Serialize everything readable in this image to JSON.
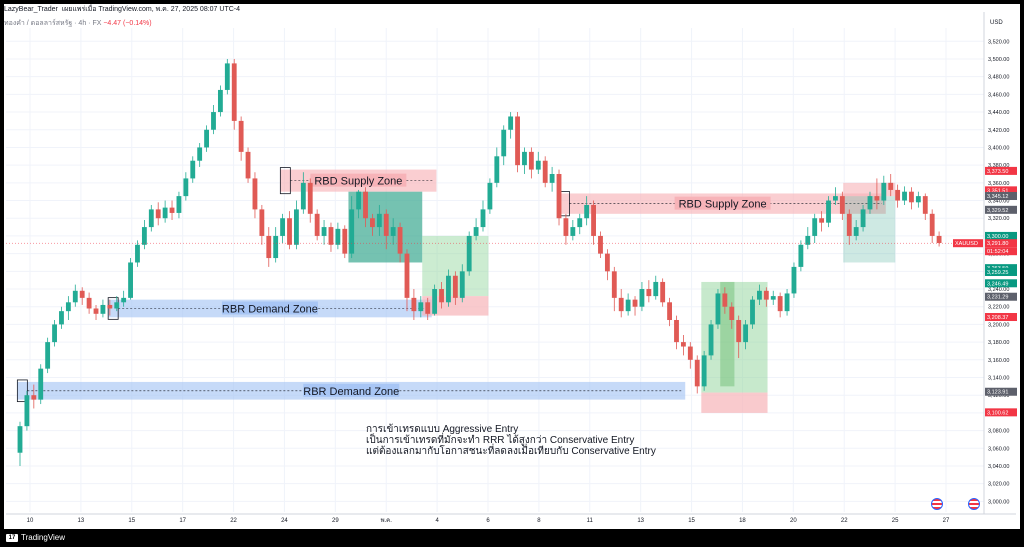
{
  "header": {
    "author": "LazyBear_Trader",
    "published_text": "เผยแพร่เมื่อ TradingView.com, พ.ค. 27, 2025 08:07 UTC-4"
  },
  "symbol_line": {
    "name": "ทองคำ / ดอลลาร์สหรัฐ · 4h · FX",
    "change": "−4.47 (−0.14%)"
  },
  "footer": {
    "brand": "TradingView",
    "logo_icon": "tradingview-logo-icon"
  },
  "colors": {
    "up": "#22ab94",
    "down": "#e05a55",
    "supply": "#f7b3b8",
    "demand": "#a8c6f5",
    "green_box": "#8fd49a",
    "teal_box": "#3aa890"
  },
  "chart_data": {
    "type": "candlestick",
    "title": "",
    "currency_label": "USD",
    "ylim": [
      2988,
      3535
    ],
    "y_ticks": [
      3000,
      3020,
      3040,
      3060,
      3080,
      3100,
      3120,
      3140,
      3160,
      3180,
      3200,
      3220,
      3240,
      3260,
      3280,
      3300,
      3320,
      3340,
      3360,
      3380,
      3400,
      3420,
      3440,
      3460,
      3480,
      3500,
      3520
    ],
    "y_tick_labels": [
      "3,000.00",
      "3,020.00",
      "3,040.00",
      "3,060.00",
      "3,080.00",
      "3,100.00",
      "3,120.00",
      "3,140.00",
      "3,160.00",
      "3,180.00",
      "3,200.00",
      "3,220.00",
      "3,240.00",
      "3,260.00",
      "3,280.00",
      "3,300.00",
      "3,320.00",
      "3,340.00",
      "3,360.00",
      "3,380.00",
      "3,400.00",
      "3,420.00",
      "3,440.00",
      "3,460.00",
      "3,480.00",
      "3,500.00",
      "3,520.00"
    ],
    "x_labels": [
      "10",
      "13",
      "15",
      "17",
      "22",
      "24",
      "29",
      "พ.ค.",
      "4",
      "6",
      "8",
      "11",
      "13",
      "15",
      "18",
      "20",
      "22",
      "25",
      "27"
    ],
    "price_tags": [
      {
        "value": 3373.5,
        "label": "3,373.50",
        "color": "#f23645"
      },
      {
        "value": 3351.51,
        "label": "3,351.51",
        "color": "#f23645"
      },
      {
        "value": 3345.12,
        "label": "3,345.12",
        "color": "#5d606b"
      },
      {
        "value": 3329.52,
        "label": "3,329.52",
        "color": "#5d606b"
      },
      {
        "value": 3300.0,
        "label": "3,300.00",
        "color": "#089981"
      },
      {
        "value": 3291.8,
        "label": "3,291.80",
        "color": "#f23645"
      },
      {
        "value": 3263.59,
        "label": "3,263.59",
        "color": "#089981"
      },
      {
        "value": 3259.25,
        "label": "3,259.25",
        "color": "#089981"
      },
      {
        "value": 3246.49,
        "label": "3,246.49",
        "color": "#089981"
      },
      {
        "value": 3231.29,
        "label": "3,231.29",
        "color": "#5d606b"
      },
      {
        "value": 3208.37,
        "label": "3,208.37",
        "color": "#f23645"
      },
      {
        "value": 3123.91,
        "label": "3,123.91",
        "color": "#5d606b"
      },
      {
        "value": 3100.62,
        "label": "3,100.62",
        "color": "#f23645"
      }
    ],
    "current": {
      "symbol": "XAUUSD",
      "price": "3,291.80",
      "countdown": "01:52:04"
    },
    "zones": [
      {
        "type": "supply",
        "label": "RBD Supply Zone",
        "x0": 0.29,
        "x1": 0.455,
        "top": 3375,
        "bottom": 3350
      },
      {
        "type": "supply",
        "label": "RBD Supply Zone",
        "x0": 0.585,
        "x1": 0.93,
        "top": 3348,
        "bottom": 3325
      },
      {
        "type": "demand",
        "label": "RBR Demand Zone",
        "x0": 0.108,
        "x1": 0.45,
        "top": 3228,
        "bottom": 3208
      },
      {
        "type": "demand",
        "label": "RBR Demand Zone",
        "x0": 0.012,
        "x1": 0.718,
        "top": 3135,
        "bottom": 3115
      }
    ],
    "annotation_lines": [
      "การเข้าเทรดแบบ Aggressive Entry",
      "เป็นการเข้าเทรดที่มักจะทำ RRR ได้สูงกว่า Conservative Entry",
      "แต่ต้องแลกมากับโอกาสชนะที่ลดลงเมื่อเทียบกับ Conservative Entry"
    ],
    "candles": [
      [
        3055,
        3085,
        3040,
        3090
      ],
      [
        3085,
        3120,
        3080,
        3125
      ],
      [
        3120,
        3115,
        3105,
        3132
      ],
      [
        3115,
        3150,
        3110,
        3155
      ],
      [
        3150,
        3180,
        3145,
        3185
      ],
      [
        3180,
        3200,
        3175,
        3205
      ],
      [
        3200,
        3215,
        3195,
        3220
      ],
      [
        3215,
        3225,
        3205,
        3232
      ],
      [
        3225,
        3238,
        3220,
        3245
      ],
      [
        3238,
        3230,
        3222,
        3242
      ],
      [
        3230,
        3218,
        3212,
        3236
      ],
      [
        3218,
        3212,
        3205,
        3222
      ],
      [
        3212,
        3222,
        3208,
        3228
      ],
      [
        3222,
        3218,
        3210,
        3228
      ],
      [
        3218,
        3225,
        3215,
        3232
      ],
      [
        3225,
        3230,
        3220,
        3238
      ],
      [
        3230,
        3270,
        3228,
        3275
      ],
      [
        3270,
        3290,
        3265,
        3295
      ],
      [
        3290,
        3310,
        3285,
        3318
      ],
      [
        3310,
        3330,
        3305,
        3335
      ],
      [
        3330,
        3320,
        3312,
        3338
      ],
      [
        3320,
        3332,
        3315,
        3340
      ],
      [
        3332,
        3326,
        3318,
        3340
      ],
      [
        3326,
        3345,
        3320,
        3350
      ],
      [
        3345,
        3365,
        3340,
        3372
      ],
      [
        3365,
        3385,
        3360,
        3390
      ],
      [
        3385,
        3400,
        3378,
        3405
      ],
      [
        3400,
        3420,
        3395,
        3425
      ],
      [
        3420,
        3440,
        3415,
        3448
      ],
      [
        3440,
        3465,
        3435,
        3470
      ],
      [
        3465,
        3495,
        3460,
        3500
      ],
      [
        3495,
        3430,
        3420,
        3500
      ],
      [
        3430,
        3395,
        3385,
        3435
      ],
      [
        3395,
        3365,
        3360,
        3400
      ],
      [
        3365,
        3330,
        3320,
        3372
      ],
      [
        3330,
        3300,
        3290,
        3335
      ],
      [
        3300,
        3275,
        3265,
        3310
      ],
      [
        3275,
        3300,
        3270,
        3310
      ],
      [
        3300,
        3320,
        3292,
        3325
      ],
      [
        3320,
        3290,
        3285,
        3328
      ],
      [
        3290,
        3330,
        3285,
        3340
      ],
      [
        3330,
        3360,
        3325,
        3372
      ],
      [
        3360,
        3325,
        3315,
        3365
      ],
      [
        3325,
        3300,
        3295,
        3330
      ],
      [
        3300,
        3310,
        3290,
        3318
      ],
      [
        3310,
        3290,
        3282,
        3315
      ],
      [
        3290,
        3308,
        3285,
        3315
      ],
      [
        3308,
        3280,
        3275,
        3312
      ],
      [
        3280,
        3330,
        3275,
        3345
      ],
      [
        3330,
        3350,
        3320,
        3352
      ],
      [
        3350,
        3320,
        3310,
        3355
      ],
      [
        3320,
        3310,
        3300,
        3325
      ],
      [
        3310,
        3325,
        3300,
        3335
      ],
      [
        3325,
        3300,
        3285,
        3330
      ],
      [
        3300,
        3310,
        3290,
        3320
      ],
      [
        3310,
        3280,
        3270,
        3315
      ],
      [
        3280,
        3230,
        3215,
        3285
      ],
      [
        3230,
        3215,
        3205,
        3240
      ],
      [
        3215,
        3225,
        3208,
        3232
      ],
      [
        3225,
        3212,
        3205,
        3230
      ],
      [
        3212,
        3240,
        3210,
        3245
      ],
      [
        3240,
        3225,
        3218,
        3248
      ],
      [
        3225,
        3255,
        3220,
        3262
      ],
      [
        3255,
        3230,
        3222,
        3260
      ],
      [
        3230,
        3260,
        3225,
        3268
      ],
      [
        3260,
        3300,
        3255,
        3305
      ],
      [
        3300,
        3310,
        3295,
        3320
      ],
      [
        3310,
        3330,
        3305,
        3340
      ],
      [
        3330,
        3360,
        3325,
        3365
      ],
      [
        3360,
        3390,
        3355,
        3400
      ],
      [
        3390,
        3420,
        3380,
        3425
      ],
      [
        3420,
        3435,
        3410,
        3440
      ],
      [
        3435,
        3380,
        3372,
        3440
      ],
      [
        3380,
        3395,
        3370,
        3400
      ],
      [
        3395,
        3375,
        3365,
        3400
      ],
      [
        3375,
        3385,
        3370,
        3395
      ],
      [
        3385,
        3360,
        3355,
        3390
      ],
      [
        3360,
        3370,
        3350,
        3378
      ],
      [
        3370,
        3320,
        3312,
        3375
      ],
      [
        3320,
        3300,
        3290,
        3325
      ],
      [
        3300,
        3310,
        3295,
        3318
      ],
      [
        3310,
        3320,
        3302,
        3325
      ],
      [
        3320,
        3335,
        3312,
        3345
      ],
      [
        3335,
        3300,
        3290,
        3340
      ],
      [
        3300,
        3280,
        3275,
        3305
      ],
      [
        3280,
        3260,
        3250,
        3285
      ],
      [
        3260,
        3230,
        3215,
        3265
      ],
      [
        3230,
        3215,
        3208,
        3240
      ],
      [
        3215,
        3228,
        3210,
        3235
      ],
      [
        3228,
        3220,
        3210,
        3232
      ],
      [
        3220,
        3240,
        3215,
        3248
      ],
      [
        3240,
        3232,
        3225,
        3250
      ],
      [
        3232,
        3248,
        3228,
        3255
      ],
      [
        3248,
        3225,
        3220,
        3252
      ],
      [
        3225,
        3205,
        3198,
        3230
      ],
      [
        3205,
        3180,
        3172,
        3210
      ],
      [
        3180,
        3175,
        3165,
        3188
      ],
      [
        3175,
        3160,
        3150,
        3180
      ],
      [
        3160,
        3130,
        3122,
        3165
      ],
      [
        3130,
        3165,
        3125,
        3170
      ],
      [
        3165,
        3200,
        3160,
        3205
      ],
      [
        3200,
        3235,
        3195,
        3240
      ],
      [
        3235,
        3220,
        3212,
        3242
      ],
      [
        3220,
        3205,
        3195,
        3225
      ],
      [
        3205,
        3180,
        3162,
        3210
      ],
      [
        3180,
        3200,
        3172,
        3205
      ],
      [
        3200,
        3228,
        3195,
        3232
      ],
      [
        3228,
        3238,
        3222,
        3245
      ],
      [
        3238,
        3228,
        3220,
        3242
      ],
      [
        3228,
        3232,
        3222,
        3238
      ],
      [
        3232,
        3215,
        3208,
        3236
      ],
      [
        3215,
        3235,
        3210,
        3240
      ],
      [
        3235,
        3265,
        3230,
        3270
      ],
      [
        3265,
        3290,
        3260,
        3295
      ],
      [
        3290,
        3300,
        3285,
        3310
      ],
      [
        3300,
        3320,
        3292,
        3325
      ],
      [
        3320,
        3315,
        3305,
        3328
      ],
      [
        3315,
        3340,
        3310,
        3345
      ],
      [
        3340,
        3345,
        3335,
        3355
      ],
      [
        3345,
        3325,
        3318,
        3350
      ],
      [
        3325,
        3300,
        3290,
        3330
      ],
      [
        3300,
        3310,
        3295,
        3318
      ],
      [
        3310,
        3330,
        3305,
        3335
      ],
      [
        3330,
        3345,
        3325,
        3350
      ],
      [
        3345,
        3340,
        3330,
        3365
      ],
      [
        3340,
        3360,
        3335,
        3368
      ],
      [
        3360,
        3352,
        3345,
        3370
      ],
      [
        3352,
        3340,
        3332,
        3358
      ],
      [
        3340,
        3350,
        3335,
        3356
      ],
      [
        3350,
        3338,
        3330,
        3355
      ],
      [
        3338,
        3345,
        3332,
        3350
      ],
      [
        3345,
        3325,
        3318,
        3348
      ],
      [
        3325,
        3300,
        3292,
        3330
      ],
      [
        3300,
        3292,
        3288,
        3305
      ]
    ]
  }
}
